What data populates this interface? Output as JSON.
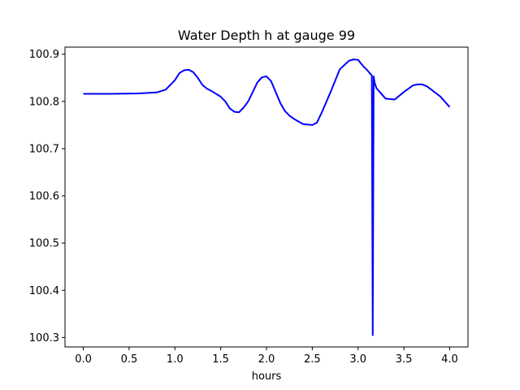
{
  "chart_data": {
    "type": "line",
    "title": "Water Depth h at gauge 99",
    "xlabel": "hours",
    "ylabel": "",
    "xlim": [
      -0.2,
      4.2
    ],
    "ylim": [
      100.28,
      100.915
    ],
    "x_ticks": [
      0.0,
      0.5,
      1.0,
      1.5,
      2.0,
      2.5,
      3.0,
      3.5,
      4.0
    ],
    "x_tick_labels": [
      "0.0",
      "0.5",
      "1.0",
      "1.5",
      "2.0",
      "2.5",
      "3.0",
      "3.5",
      "4.0"
    ],
    "y_ticks": [
      100.3,
      100.4,
      100.5,
      100.6,
      100.7,
      100.8,
      100.9
    ],
    "y_tick_labels": [
      "100.3",
      "100.4",
      "100.5",
      "100.6",
      "100.7",
      "100.8",
      "100.9"
    ],
    "grid": false,
    "legend": "none",
    "series": [
      {
        "color": "#0000ff",
        "x": [
          0.0,
          0.3,
          0.6,
          0.8,
          0.9,
          1.0,
          1.05,
          1.1,
          1.15,
          1.2,
          1.25,
          1.3,
          1.35,
          1.4,
          1.5,
          1.55,
          1.6,
          1.65,
          1.7,
          1.75,
          1.8,
          1.85,
          1.9,
          1.95,
          2.0,
          2.05,
          2.1,
          2.15,
          2.2,
          2.25,
          2.3,
          2.4,
          2.5,
          2.55,
          2.6,
          2.7,
          2.8,
          2.9,
          2.95,
          3.0,
          3.05,
          3.1,
          3.15,
          3.16,
          3.17,
          3.18,
          3.2,
          3.3,
          3.4,
          3.5,
          3.6,
          3.65,
          3.7,
          3.75,
          3.8,
          3.9,
          4.0
        ],
        "y": [
          100.816,
          100.816,
          100.817,
          100.819,
          100.825,
          100.845,
          100.86,
          100.866,
          100.867,
          100.862,
          100.85,
          100.835,
          100.827,
          100.822,
          100.81,
          100.8,
          100.785,
          100.778,
          100.777,
          100.787,
          100.8,
          100.82,
          100.84,
          100.851,
          100.853,
          100.843,
          100.82,
          100.797,
          100.78,
          100.77,
          100.763,
          100.752,
          100.75,
          100.755,
          100.775,
          100.82,
          100.868,
          100.886,
          100.889,
          100.888,
          100.876,
          100.866,
          100.855,
          100.305,
          100.853,
          100.84,
          100.828,
          100.806,
          100.804,
          100.82,
          100.834,
          100.836,
          100.836,
          100.832,
          100.825,
          100.81,
          100.788
        ]
      }
    ]
  }
}
